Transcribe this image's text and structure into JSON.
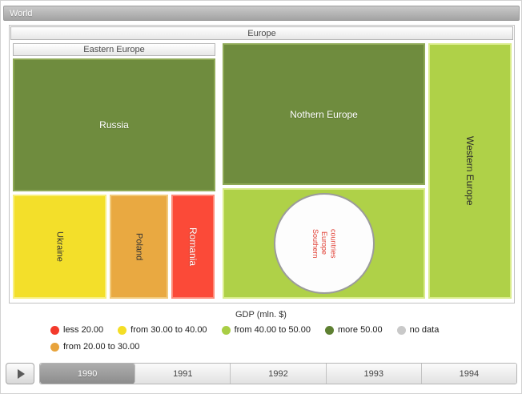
{
  "window": {
    "title": "World"
  },
  "treemap": {
    "group_label": "Europe",
    "eastern_label": "Eastern Europe",
    "russia": "Russia",
    "ukraine": "Ukraine",
    "poland": "Poland",
    "romania": "Romania",
    "northern": "Nothern Europe",
    "southern": "Southern Europe countries",
    "western": "Western Europe"
  },
  "legend": {
    "title": "GDP (mln. $)",
    "items": [
      {
        "label": "less 20.00",
        "color": "#f3392b"
      },
      {
        "label": "from 30.00 to 40.00",
        "color": "#f4de26"
      },
      {
        "label": "from 40.00 to 50.00",
        "color": "#a9ce45"
      },
      {
        "label": "more 50.00",
        "color": "#5e8032"
      },
      {
        "label": "no data",
        "color": "#c9c9c9"
      },
      {
        "label": "from 20.00 to 30.00",
        "color": "#e8a33b"
      }
    ]
  },
  "timeline": {
    "years": [
      "1990",
      "1991",
      "1992",
      "1993",
      "1994"
    ],
    "selected": "1990"
  },
  "chart_data": {
    "type": "treemap",
    "title": "GDP (mln. $)",
    "root": "World",
    "groups": [
      {
        "name": "Europe",
        "children": [
          {
            "name": "Eastern Europe",
            "children": [
              {
                "name": "Russia",
                "bin": "more 50.00",
                "color": "#6f8c3e"
              },
              {
                "name": "Ukraine",
                "bin": "from 30.00 to 40.00",
                "color": "#f3df2a"
              },
              {
                "name": "Poland",
                "bin": "from 20.00 to 30.00",
                "color": "#e9a941"
              },
              {
                "name": "Romania",
                "bin": "less 20.00",
                "color": "#fb4a38"
              }
            ]
          },
          {
            "name": "Nothern Europe",
            "bin": "more 50.00",
            "color": "#6f8c3e"
          },
          {
            "name": "Southern Europe countries",
            "bin": "from 40.00 to 50.00",
            "color": "#afd148"
          },
          {
            "name": "Western Europe",
            "bin": "from 40.00 to 50.00",
            "color": "#afd148"
          }
        ]
      }
    ],
    "legend_position": "bottom",
    "timeline_years": [
      "1990",
      "1991",
      "1992",
      "1993",
      "1994"
    ],
    "selected_year": "1990"
  }
}
